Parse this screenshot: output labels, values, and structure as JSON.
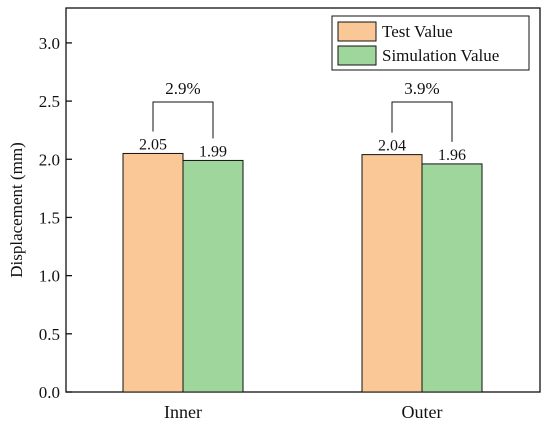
{
  "chart_data": {
    "type": "bar",
    "categories": [
      "Inner",
      "Outer"
    ],
    "series": [
      {
        "name": "Test Value",
        "values": [
          2.05,
          2.04
        ],
        "color": "#f9c896"
      },
      {
        "name": "Simulation Value",
        "values": [
          1.99,
          1.96
        ],
        "color": "#9ed69b"
      }
    ],
    "value_labels": [
      [
        "2.05",
        "1.99"
      ],
      [
        "2.04",
        "1.96"
      ]
    ],
    "differences": [
      "2.9%",
      "3.9%"
    ],
    "xlabel": "",
    "ylabel": "Displacement (mm)",
    "ylim": [
      0,
      3.3
    ],
    "yticks": [
      "0.0",
      "0.5",
      "1.0",
      "1.5",
      "2.0",
      "2.5",
      "3.0"
    ],
    "ytick_values": [
      0,
      0.5,
      1.0,
      1.5,
      2.0,
      2.5,
      3.0
    ],
    "legend": {
      "position": "top-right",
      "entries": [
        "Test Value",
        "Simulation Value"
      ]
    },
    "grid": false
  }
}
